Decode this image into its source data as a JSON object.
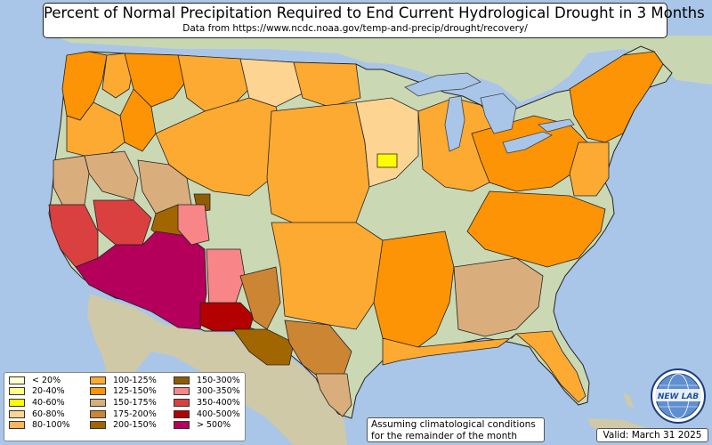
{
  "header": {
    "title": "Percent of Normal Precipitation Required to End Current Hydrological Drought in 3 Months",
    "subtitle": "Data from https://www.ncdc.noaa.gov/temp-and-precip/drought/recovery/"
  },
  "legend": {
    "items": [
      {
        "label": "< 20%",
        "color": "#ffffd0"
      },
      {
        "label": "20-40%",
        "color": "#fdfd88"
      },
      {
        "label": "40-60%",
        "color": "#fdfd00"
      },
      {
        "label": "60-80%",
        "color": "#fed492"
      },
      {
        "label": "80-100%",
        "color": "#fdb45e"
      },
      {
        "label": "100-125%",
        "color": "#fdaa33"
      },
      {
        "label": "125-150%",
        "color": "#fc9405"
      },
      {
        "label": "150-175%",
        "color": "#d9ae7c"
      },
      {
        "label": "175-200%",
        "color": "#cc8533"
      },
      {
        "label": "200-150%",
        "color": "#a26600"
      },
      {
        "label": "150-300%",
        "color": "#8f5c06"
      },
      {
        "label": "300-350%",
        "color": "#f88587"
      },
      {
        "label": "350-400%",
        "color": "#db4040"
      },
      {
        "label": "400-500%",
        "color": "#b30000"
      },
      {
        "label": "> 500%",
        "color": "#b4005b"
      }
    ]
  },
  "note": {
    "line1": "Assuming climatological conditions",
    "line2": "for the remainder of the month"
  },
  "valid_label": "Valid: March 31 2025",
  "logo": {
    "text": "NEW LAB",
    "icon": "globe-logo-icon"
  },
  "map_colors": {
    "ocean": "#a9c6e8",
    "land": "#cbd8b4",
    "mountain": "#d8cfb5",
    "lake": "#a9c6e8"
  }
}
